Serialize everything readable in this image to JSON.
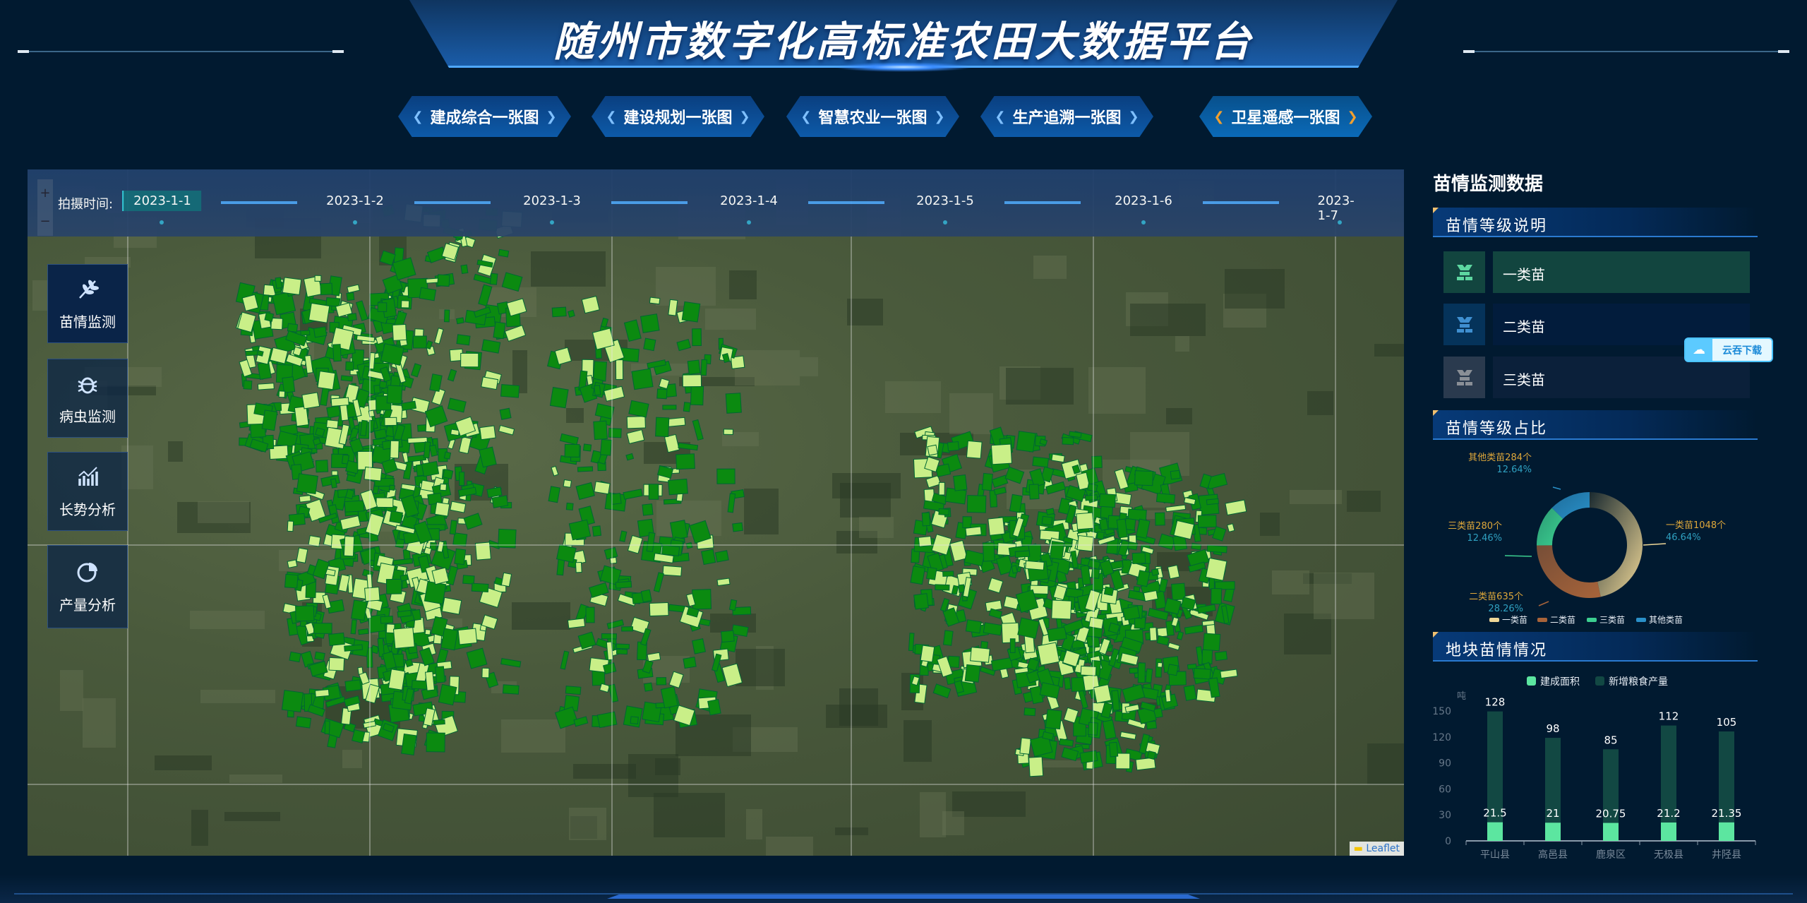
{
  "header": {
    "title": "随州市数字化高标准农田大数据平台"
  },
  "nav": [
    {
      "label": "建成综合一张图",
      "active": false
    },
    {
      "label": "建设规划一张图",
      "active": false
    },
    {
      "label": "智慧农业一张图",
      "active": false
    },
    {
      "label": "生产追溯一张图",
      "active": false
    },
    {
      "label": "卫星遥感一张图",
      "active": true
    }
  ],
  "timeline": {
    "label": "拍摄时间:",
    "dates": [
      "2023-1-1",
      "2023-1-2",
      "2023-1-3",
      "2023-1-4",
      "2023-1-5",
      "2023-1-6",
      "2023-1-7"
    ],
    "active": "2023-1-1"
  },
  "map": {
    "zoom_in": "+",
    "zoom_out": "−",
    "attribution": "Leaflet",
    "field_colors": {
      "class1": "#0b8a10",
      "class_light": "#c9ef88"
    }
  },
  "side_buttons": [
    {
      "label": "苗情监测",
      "icon": "wheat-icon"
    },
    {
      "label": "病虫监测",
      "icon": "bug-icon"
    },
    {
      "label": "长势分析",
      "icon": "trend-chart-icon"
    },
    {
      "label": "产量分析",
      "icon": "pie-chart-icon"
    }
  ],
  "right": {
    "title": "苗情监测数据",
    "sec1": "苗情等级说明",
    "levels": [
      {
        "label": "一类苗",
        "color": "#5dd6a0",
        "bg": "#12453f"
      },
      {
        "label": "二类苗",
        "color": "#3f8fd0",
        "bg": "#021c3c"
      },
      {
        "label": "三类苗",
        "color": "#8a8f96",
        "bg": "#0b203a"
      }
    ],
    "sec2": "苗情等级占比",
    "sec3": "地块苗情情况"
  },
  "cloud_button": {
    "label": "云吞下载"
  },
  "chart_data": [
    {
      "type": "pie",
      "donut": true,
      "categories": [
        "一类苗",
        "二类苗",
        "三类苗",
        "其他类苗"
      ],
      "values": [
        1048,
        635,
        280,
        284
      ],
      "percents": [
        "46.64%",
        "28.26%",
        "12.46%",
        "12.64%"
      ],
      "labels": [
        "一类苗1048个",
        "二类苗635个",
        "三类苗280个",
        "其他类苗284个"
      ],
      "colors": [
        "#f0d898",
        "#a8643a",
        "#3ccf90",
        "#2a90c8"
      ],
      "legend": "bottom"
    },
    {
      "type": "bar",
      "stacked": true,
      "categories": [
        "平山县",
        "高邑县",
        "鹿泉区",
        "无极县",
        "井陉县"
      ],
      "ylabel": "吨",
      "ylim": [
        0,
        150
      ],
      "yticks": [
        0,
        30,
        60,
        90,
        120,
        150
      ],
      "series": [
        {
          "name": "建成面积",
          "values": [
            21.5,
            21,
            20.75,
            21.2,
            21.35
          ],
          "color": "#5ce6a0"
        },
        {
          "name": "新增粮食产量",
          "values": [
            128,
            98,
            85,
            112,
            105
          ],
          "color": "#124843"
        }
      ],
      "legend": "top"
    }
  ]
}
